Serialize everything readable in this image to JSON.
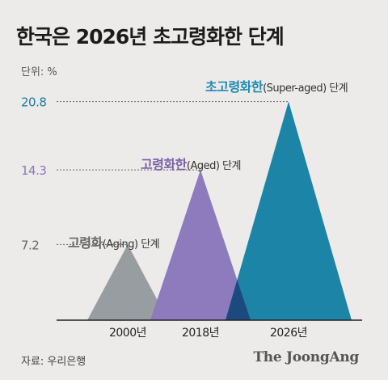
{
  "title": "한국은 2026년 초고령화한 단계",
  "unit_label": "단위: %",
  "source": "자료: 우리은행",
  "brand": "The JoongAng",
  "chart_data": {
    "type": "area",
    "categories": [
      "2000년",
      "2018년",
      "2026년"
    ],
    "values": [
      7.2,
      14.3,
      20.8
    ],
    "value_labels": [
      "7.2",
      "14.3",
      "20.8"
    ],
    "ylim": [
      0,
      22
    ],
    "stages": [
      {
        "bold": "고령화",
        "rest": "(Aging) 단계",
        "color": "#666666"
      },
      {
        "bold": "고령화한",
        "rest": "(Aged) 단계",
        "color": "#7a5fa8"
      },
      {
        "bold": "초고령화한",
        "rest": "(Super-aged) 단계",
        "color": "#1f8ab4"
      }
    ],
    "colors": [
      "#979da1",
      "#8d7bbd",
      "#1c84a6"
    ],
    "overlap_color": "#1d4a7e",
    "label_colors": [
      "#666666",
      "#8a78bd",
      "#1a7aa1"
    ]
  }
}
